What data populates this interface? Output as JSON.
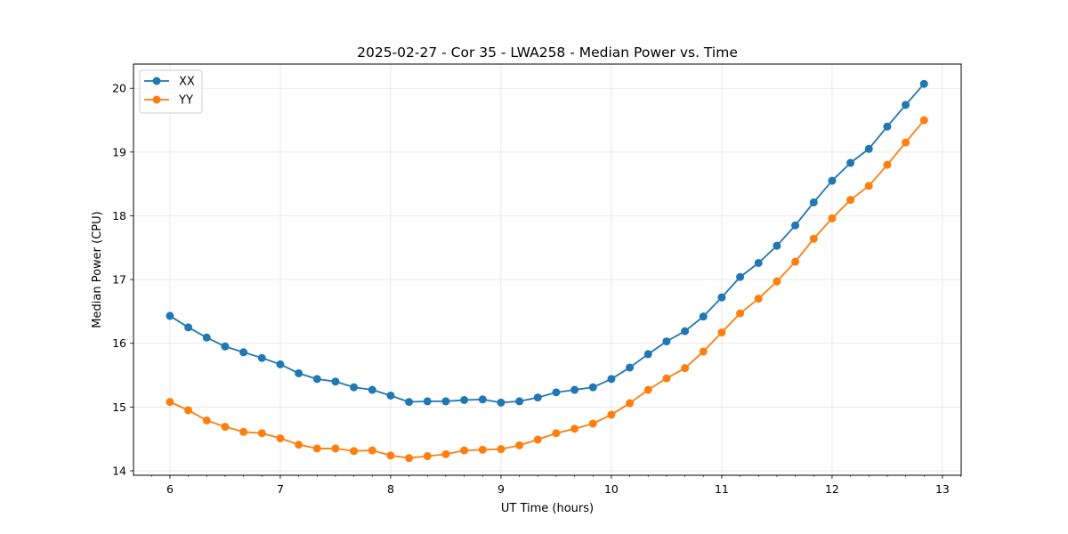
{
  "chart_data": {
    "type": "line",
    "title": "2025-02-27 - Cor 35 - LWA258 - Median Power vs. Time",
    "xlabel": "UT Time (hours)",
    "ylabel": "Median Power (CPU)",
    "xlim": [
      5.67,
      13.17
    ],
    "ylim": [
      13.93,
      20.38
    ],
    "xticks": [
      "6",
      "7",
      "8",
      "9",
      "10",
      "11",
      "12",
      "13"
    ],
    "yticks": [
      "14",
      "15",
      "16",
      "17",
      "18",
      "19",
      "20"
    ],
    "grid": true,
    "legend_position": "top-left",
    "x": [
      6.0,
      6.1667,
      6.3333,
      6.5,
      6.6667,
      6.8333,
      7.0,
      7.1667,
      7.3333,
      7.5,
      7.6667,
      7.8333,
      8.0,
      8.1667,
      8.3333,
      8.5,
      8.6667,
      8.8333,
      9.0,
      9.1667,
      9.3333,
      9.5,
      9.6667,
      9.8333,
      10.0,
      10.1667,
      10.3333,
      10.5,
      10.6667,
      10.8333,
      11.0,
      11.1667,
      11.3333,
      11.5,
      11.6667,
      11.8333,
      12.0,
      12.1667,
      12.3333,
      12.5,
      12.6667,
      12.8333
    ],
    "series": [
      {
        "name": "XX",
        "color": "#1f77b4",
        "values": [
          16.43,
          16.25,
          16.09,
          15.95,
          15.86,
          15.77,
          15.67,
          15.53,
          15.44,
          15.4,
          15.31,
          15.27,
          15.18,
          15.08,
          15.09,
          15.09,
          15.11,
          15.12,
          15.07,
          15.09,
          15.15,
          15.23,
          15.27,
          15.31,
          15.44,
          15.62,
          15.83,
          16.03,
          16.19,
          16.42,
          16.72,
          17.04,
          17.26,
          17.53,
          17.85,
          18.21,
          18.55,
          18.83,
          19.05,
          19.4,
          19.74,
          20.07
        ]
      },
      {
        "name": "YY",
        "color": "#ff7f0e",
        "values": [
          15.08,
          14.95,
          14.79,
          14.69,
          14.61,
          14.59,
          14.51,
          14.41,
          14.35,
          14.35,
          14.31,
          14.32,
          14.24,
          14.2,
          14.23,
          14.26,
          14.32,
          14.33,
          14.34,
          14.4,
          14.49,
          14.59,
          14.66,
          14.74,
          14.88,
          15.06,
          15.27,
          15.45,
          15.61,
          15.87,
          16.17,
          16.47,
          16.7,
          16.97,
          17.28,
          17.64,
          17.96,
          18.25,
          18.47,
          18.8,
          19.15,
          19.5
        ]
      }
    ]
  }
}
